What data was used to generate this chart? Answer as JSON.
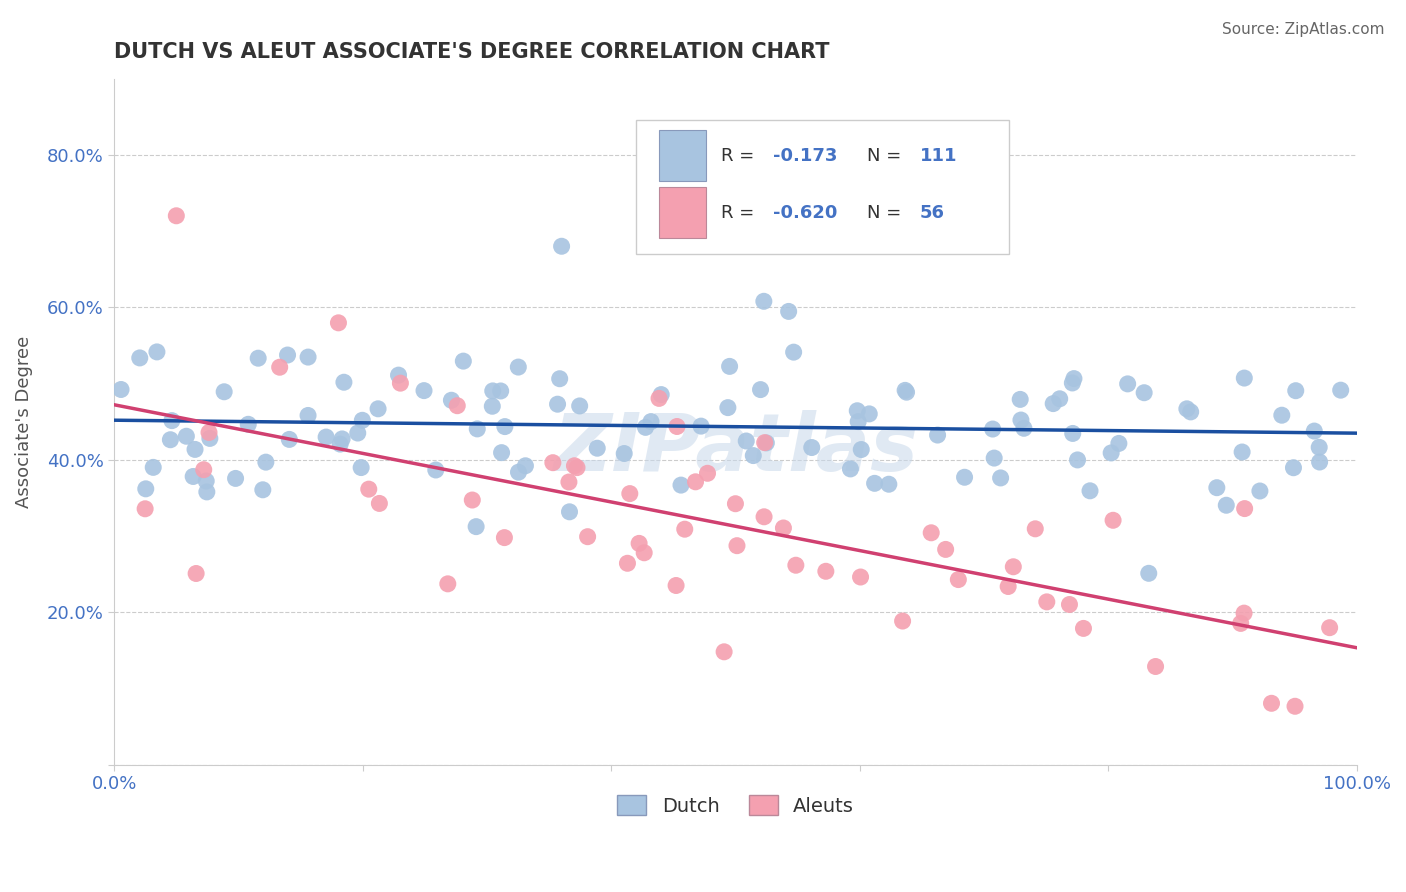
{
  "title": "DUTCH VS ALEUT ASSOCIATE'S DEGREE CORRELATION CHART",
  "ylabel": "Associate's Degree",
  "source": "Source: ZipAtlas.com",
  "watermark": "ZIPatlas",
  "dutch_R": -0.173,
  "dutch_N": 111,
  "aleut_R": -0.62,
  "aleut_N": 56,
  "dutch_color": "#a8c4e0",
  "aleut_color": "#f4a0b0",
  "dutch_line_color": "#1a4fa0",
  "aleut_line_color": "#d04070",
  "background_color": "#ffffff",
  "grid_color": "#cccccc",
  "title_color": "#333333",
  "accent_color": "#4472c4"
}
